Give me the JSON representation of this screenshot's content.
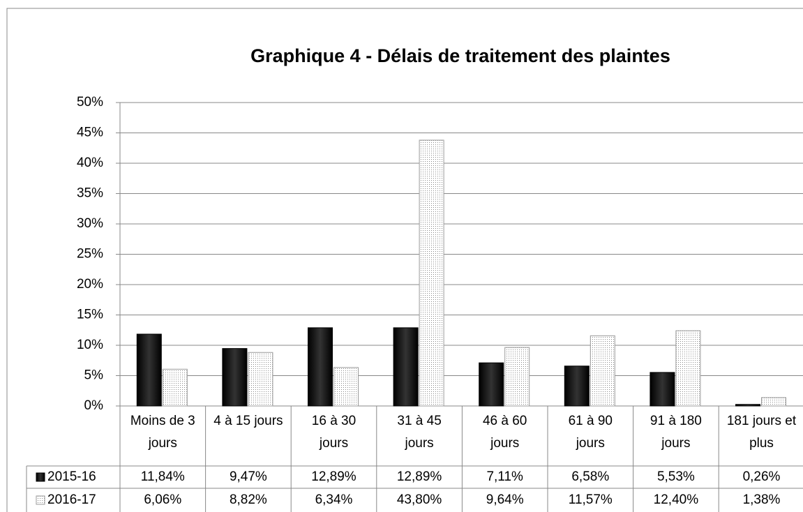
{
  "chart_data": {
    "type": "bar",
    "title": "Graphique 4 - Délais de traitement des plaintes",
    "categories": [
      "Moins de 3 jours",
      "4 à 15 jours",
      "16 à 30 jours",
      "31 à 45 jours",
      "46 à 60 jours",
      "61 à 90 jours",
      "91 à 180 jours",
      "181 jours et plus"
    ],
    "series": [
      {
        "name": "2015-16",
        "color": "#000000",
        "values": [
          11.84,
          9.47,
          12.89,
          12.89,
          7.11,
          6.58,
          5.53,
          0.26
        ],
        "value_labels": [
          "11,84%",
          "9,47%",
          "12,89%",
          "12,89%",
          "7,11%",
          "6,58%",
          "5,53%",
          "0,26%"
        ]
      },
      {
        "name": "2016-17",
        "color": "#d9d9d9",
        "values": [
          6.06,
          8.82,
          6.34,
          43.8,
          9.64,
          11.57,
          12.4,
          1.38
        ],
        "value_labels": [
          "6,06%",
          "8,82%",
          "6,34%",
          "43,80%",
          "9,64%",
          "11,57%",
          "12,40%",
          "1,38%"
        ]
      }
    ],
    "ylim": [
      0,
      50
    ],
    "yticks": [
      {
        "value": 0,
        "label": "0%"
      },
      {
        "value": 5,
        "label": "5%"
      },
      {
        "value": 10,
        "label": "10%"
      },
      {
        "value": 15,
        "label": "15%"
      },
      {
        "value": 20,
        "label": "20%"
      },
      {
        "value": 25,
        "label": "25%"
      },
      {
        "value": 30,
        "label": "30%"
      },
      {
        "value": 35,
        "label": "35%"
      },
      {
        "value": 40,
        "label": "40%"
      },
      {
        "value": 45,
        "label": "45%"
      },
      {
        "value": 50,
        "label": "50%"
      }
    ],
    "grid": true
  }
}
